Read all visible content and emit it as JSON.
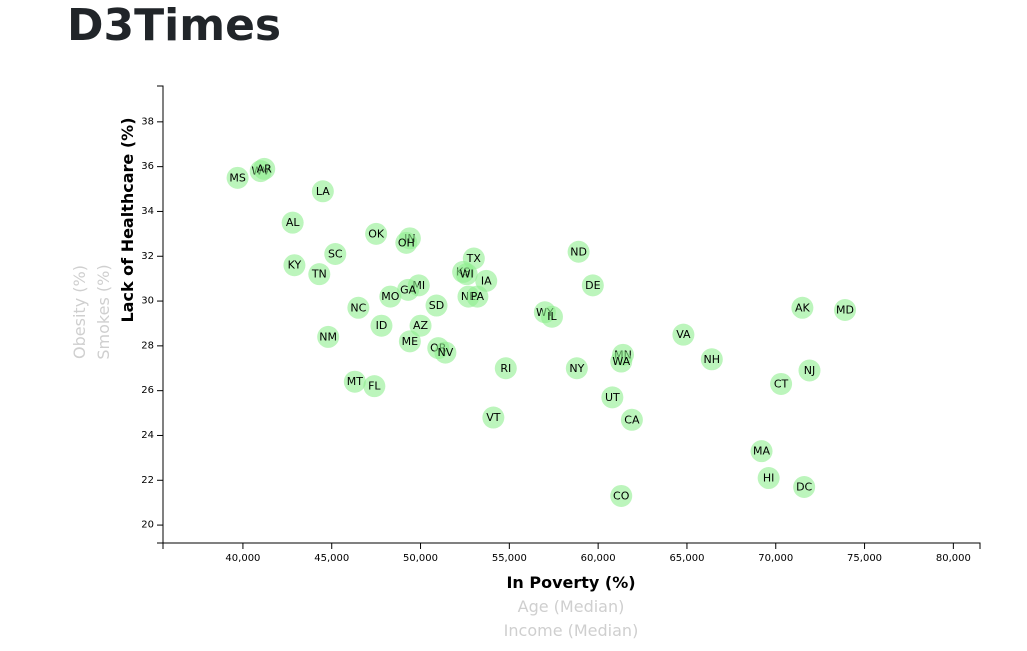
{
  "page": {
    "title": "D3Times"
  },
  "chart_data": {
    "type": "scatter",
    "x_axis": {
      "active_label": "In Poverty (%)",
      "inactive_labels": [
        "Age (Median)",
        "Income (Median)"
      ],
      "domain": [
        35500,
        81500
      ],
      "ticks": [
        40000,
        45000,
        50000,
        55000,
        60000,
        65000,
        70000,
        75000,
        80000
      ],
      "tick_labels": [
        "40,000",
        "45,000",
        "50,000",
        "55,000",
        "60,000",
        "65,000",
        "70,000",
        "75,000",
        "80,000"
      ]
    },
    "y_axis": {
      "active_label": "Lack of Healthcare (%)",
      "inactive_labels": [
        "Smokes (%)",
        "Obesity (%)"
      ],
      "domain": [
        19.2,
        39.6
      ],
      "ticks": [
        20,
        22,
        24,
        26,
        28,
        30,
        32,
        34,
        36,
        38
      ],
      "tick_labels": [
        "20",
        "22",
        "24",
        "26",
        "28",
        "30",
        "32",
        "34",
        "36",
        "38"
      ]
    },
    "point_color": "#90ee90",
    "points": [
      {
        "abbr": "MS",
        "x": 39700,
        "y": 35.5
      },
      {
        "abbr": "WV",
        "x": 41000,
        "y": 35.8
      },
      {
        "abbr": "AR",
        "x": 41200,
        "y": 35.9
      },
      {
        "abbr": "LA",
        "x": 44500,
        "y": 34.9
      },
      {
        "abbr": "AL",
        "x": 42800,
        "y": 33.5
      },
      {
        "abbr": "OK",
        "x": 47500,
        "y": 33.0
      },
      {
        "abbr": "IN",
        "x": 49400,
        "y": 32.8
      },
      {
        "abbr": "OH",
        "x": 49200,
        "y": 32.6
      },
      {
        "abbr": "SC",
        "x": 45200,
        "y": 32.1
      },
      {
        "abbr": "KY",
        "x": 42900,
        "y": 31.6
      },
      {
        "abbr": "TN",
        "x": 44300,
        "y": 31.2
      },
      {
        "abbr": "TX",
        "x": 53000,
        "y": 31.9
      },
      {
        "abbr": "KS",
        "x": 52400,
        "y": 31.3
      },
      {
        "abbr": "WI",
        "x": 52600,
        "y": 31.2
      },
      {
        "abbr": "IA",
        "x": 53700,
        "y": 30.9
      },
      {
        "abbr": "ND",
        "x": 58900,
        "y": 32.2
      },
      {
        "abbr": "DE",
        "x": 59700,
        "y": 30.7
      },
      {
        "abbr": "MI",
        "x": 49900,
        "y": 30.7
      },
      {
        "abbr": "GA",
        "x": 49300,
        "y": 30.5
      },
      {
        "abbr": "MO",
        "x": 48300,
        "y": 30.2
      },
      {
        "abbr": "NE",
        "x": 52700,
        "y": 30.2
      },
      {
        "abbr": "PA",
        "x": 53200,
        "y": 30.2
      },
      {
        "abbr": "SD",
        "x": 50900,
        "y": 29.8
      },
      {
        "abbr": "NC",
        "x": 46500,
        "y": 29.7
      },
      {
        "abbr": "WY",
        "x": 57000,
        "y": 29.5
      },
      {
        "abbr": "IL",
        "x": 57400,
        "y": 29.3
      },
      {
        "abbr": "AK",
        "x": 71500,
        "y": 29.7
      },
      {
        "abbr": "MD",
        "x": 73900,
        "y": 29.6
      },
      {
        "abbr": "ID",
        "x": 47800,
        "y": 28.9
      },
      {
        "abbr": "AZ",
        "x": 50000,
        "y": 28.9
      },
      {
        "abbr": "VA",
        "x": 64800,
        "y": 28.5
      },
      {
        "abbr": "NM",
        "x": 44800,
        "y": 28.4
      },
      {
        "abbr": "ME",
        "x": 49400,
        "y": 28.2
      },
      {
        "abbr": "OR",
        "x": 51000,
        "y": 27.9
      },
      {
        "abbr": "NV",
        "x": 51400,
        "y": 27.7
      },
      {
        "abbr": "MN",
        "x": 61400,
        "y": 27.6
      },
      {
        "abbr": "WA",
        "x": 61300,
        "y": 27.3
      },
      {
        "abbr": "NH",
        "x": 66400,
        "y": 27.4
      },
      {
        "abbr": "RI",
        "x": 54800,
        "y": 27.0
      },
      {
        "abbr": "NY",
        "x": 58800,
        "y": 27.0
      },
      {
        "abbr": "NJ",
        "x": 71900,
        "y": 26.9
      },
      {
        "abbr": "MT",
        "x": 46300,
        "y": 26.4
      },
      {
        "abbr": "FL",
        "x": 47400,
        "y": 26.2
      },
      {
        "abbr": "CT",
        "x": 70300,
        "y": 26.3
      },
      {
        "abbr": "UT",
        "x": 60800,
        "y": 25.7
      },
      {
        "abbr": "CA",
        "x": 61900,
        "y": 24.7
      },
      {
        "abbr": "VT",
        "x": 54100,
        "y": 24.8
      },
      {
        "abbr": "MA",
        "x": 69200,
        "y": 23.3
      },
      {
        "abbr": "HI",
        "x": 69600,
        "y": 22.1
      },
      {
        "abbr": "DC",
        "x": 71600,
        "y": 21.7
      },
      {
        "abbr": "CO",
        "x": 61300,
        "y": 21.3
      }
    ]
  }
}
